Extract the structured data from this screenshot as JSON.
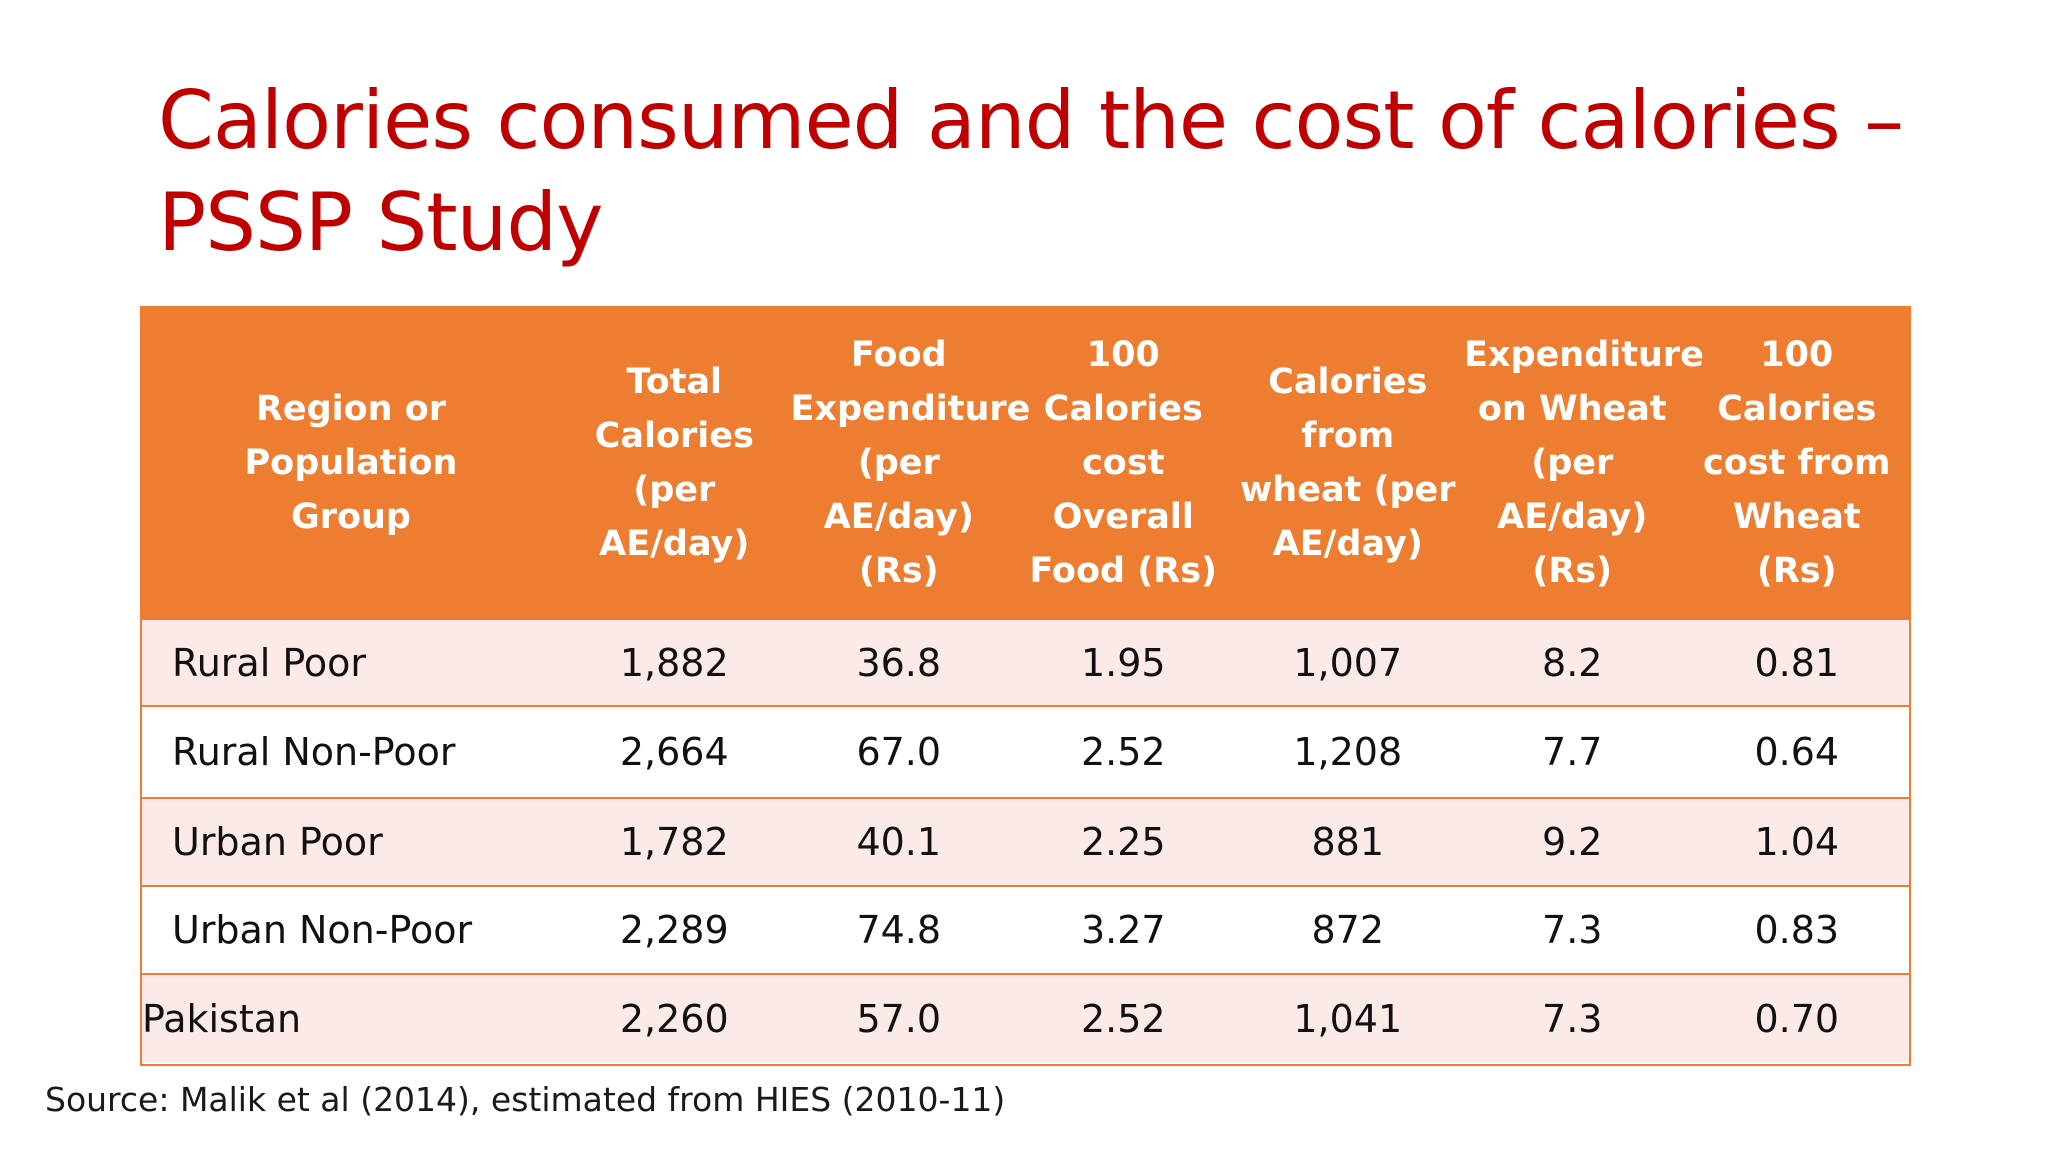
{
  "slide": {
    "title": "Calories consumed and the cost of calories – PSSP Study",
    "source": "Source: Malik et al (2014), estimated from HIES (2010-11)"
  },
  "colors": {
    "title": "#c00000",
    "header_bg": "#ed7d31",
    "row_odd_bg": "#fbeae8",
    "row_even_bg": "#ffffff",
    "grid_line": "#ed7d31"
  },
  "table": {
    "headers": [
      "Region or Population Group",
      "Total Calories (per AE/day)",
      "Food Expenditure (per AE/day) (Rs)",
      "100 Calories cost Overall Food (Rs)",
      "Calories from wheat (per AE/day)",
      "Expenditure on Wheat (per AE/day) (Rs)",
      "100 Calories cost from Wheat (Rs)"
    ],
    "rows": [
      [
        "Rural Poor",
        "1,882",
        "36.8",
        "1.95",
        "1,007",
        "8.2",
        "0.81"
      ],
      [
        "Rural Non-Poor",
        "2,664",
        "67.0",
        "2.52",
        "1,208",
        "7.7",
        "0.64"
      ],
      [
        "Urban Poor",
        "1,782",
        "40.1",
        "2.25",
        "881",
        "9.2",
        "1.04"
      ],
      [
        "Urban Non-Poor",
        "2,289",
        "74.8",
        "3.27",
        "872",
        "7.3",
        "0.83"
      ],
      [
        "Pakistan",
        "2,260",
        "57.0",
        "2.52",
        "1,041",
        "7.3",
        "0.70"
      ]
    ]
  }
}
